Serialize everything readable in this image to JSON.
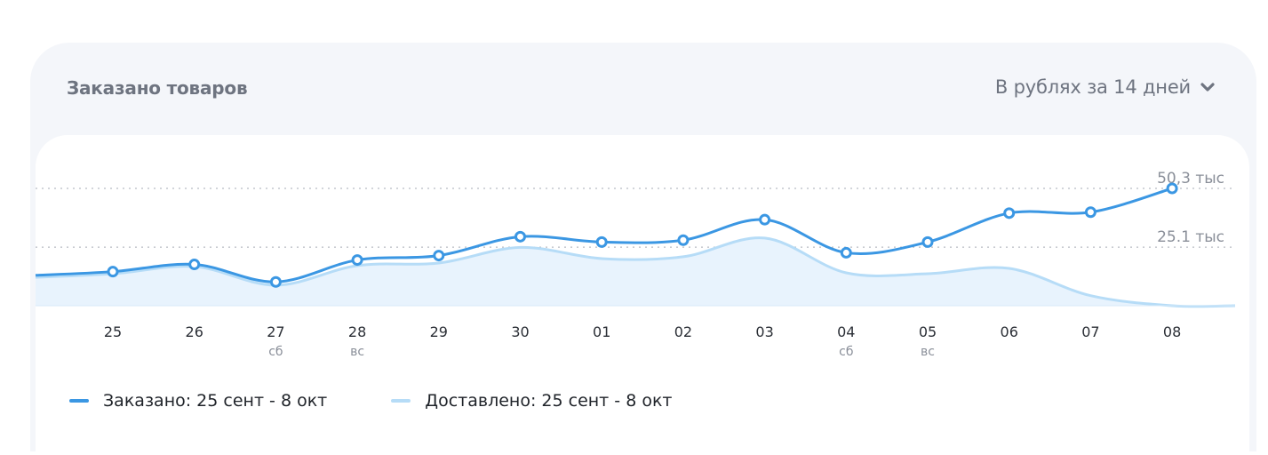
{
  "header": {
    "title": "Заказано товаров",
    "period_label": "В рублях за 14 дней"
  },
  "colors": {
    "ordered": "#3b97e3",
    "delivered": "#b6dcf7",
    "fill": "#e8f3fd",
    "grid": "#b8bcc4"
  },
  "icons": {
    "period_toggle": "chevron-down-icon"
  },
  "chart_data": {
    "type": "line",
    "x": [
      "25",
      "26",
      "27",
      "28",
      "29",
      "30",
      "01",
      "02",
      "03",
      "04",
      "05",
      "06",
      "07",
      "08"
    ],
    "x_sub": [
      "",
      "",
      "сб",
      "вс",
      "",
      "",
      "",
      "",
      "",
      "сб",
      "вс",
      "",
      "",
      ""
    ],
    "y_reference_lines": [
      {
        "value": 50.3,
        "label": "50,3 тыс"
      },
      {
        "value": 25.1,
        "label": "25.1 тыс"
      }
    ],
    "ylim": [
      0,
      50.3
    ],
    "series": [
      {
        "name": "Заказано: 25 сент - 8 окт",
        "values": [
          14.6,
          17.7,
          10.2,
          19.6,
          21.5,
          29.6,
          27.3,
          28.1,
          36.9,
          22.7,
          27.3,
          39.7,
          40.1,
          50.3
        ]
      },
      {
        "name": "Доставлено: 25 сент - 8 окт",
        "values": [
          13.7,
          16.8,
          8.8,
          17.2,
          18.3,
          25.0,
          20.2,
          21.0,
          29.0,
          14.1,
          13.7,
          16.0,
          4.3,
          0.0
        ]
      }
    ]
  }
}
